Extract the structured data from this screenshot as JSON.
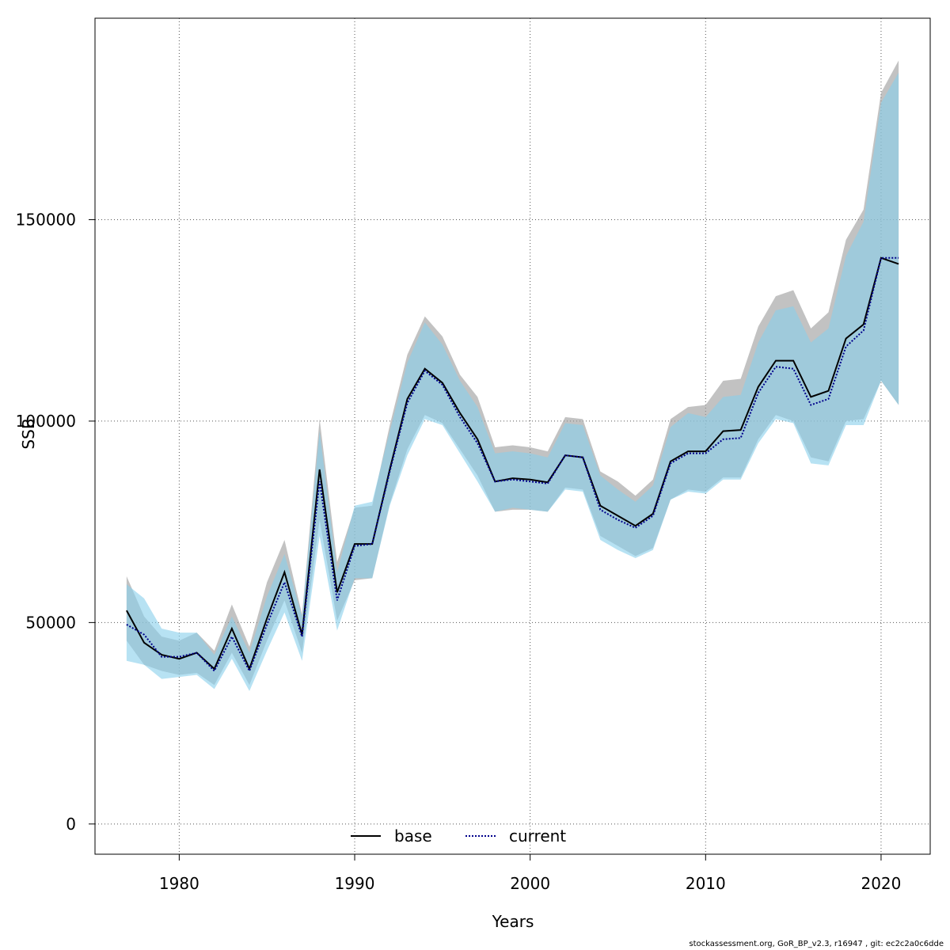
{
  "chart_data": {
    "type": "line",
    "title": "",
    "xlabel": "Years",
    "ylabel": "SSB",
    "xlim": [
      1975.2,
      2022.8
    ],
    "ylim": [
      -7500,
      200000
    ],
    "x_ticks": [
      1980,
      1990,
      2000,
      2010,
      2020
    ],
    "y_ticks": [
      0,
      50000,
      100000,
      150000
    ],
    "grid": true,
    "legend_position": "bottom-center",
    "legend": [
      "base",
      "current"
    ],
    "x": [
      1977,
      1978,
      1979,
      1980,
      1981,
      1982,
      1983,
      1984,
      1985,
      1986,
      1987,
      1988,
      1989,
      1990,
      1991,
      1992,
      1993,
      1994,
      1995,
      1996,
      1997,
      1998,
      1999,
      2000,
      2001,
      2002,
      2003,
      2004,
      2005,
      2006,
      2007,
      2008,
      2009,
      2010,
      2011,
      2012,
      2013,
      2014,
      2015,
      2016,
      2017,
      2018,
      2019,
      2020,
      2021
    ],
    "series": [
      {
        "name": "base",
        "style": "solid",
        "line_color": "#000000",
        "band_color": "#999999",
        "values": [
          53000,
          45000,
          42000,
          41000,
          42500,
          38500,
          48500,
          38500,
          51000,
          62500,
          47000,
          88000,
          57500,
          69500,
          69500,
          88000,
          105500,
          113000,
          109500,
          102000,
          95500,
          85000,
          85800,
          85500,
          84800,
          91500,
          91000,
          79000,
          76500,
          74000,
          77000,
          90000,
          92500,
          92500,
          97500,
          97800,
          108500,
          115000,
          115000,
          106000,
          107500,
          120500,
          124000,
          140500,
          139000
        ],
        "lower": [
          45500,
          39500,
          38000,
          37000,
          37500,
          34500,
          42500,
          34500,
          45500,
          55500,
          42500,
          75500,
          50500,
          60500,
          61000,
          79500,
          93000,
          101500,
          99500,
          93000,
          86500,
          77500,
          78000,
          78000,
          77500,
          83500,
          83000,
          71500,
          69000,
          66500,
          68500,
          80500,
          83000,
          82500,
          86000,
          86000,
          95500,
          101500,
          100000,
          91000,
          90000,
          100000,
          100500,
          110000,
          104000
        ],
        "upper": [
          61500,
          51500,
          46500,
          45500,
          47500,
          43000,
          54500,
          44000,
          60000,
          70500,
          52000,
          100500,
          65000,
          78500,
          79000,
          99000,
          116500,
          126000,
          121000,
          111500,
          106000,
          93500,
          94000,
          93500,
          92500,
          101000,
          100500,
          87500,
          85000,
          81500,
          85500,
          100500,
          103500,
          104000,
          110000,
          110500,
          123500,
          131000,
          132500,
          123000,
          127000,
          145000,
          152500,
          181500,
          189500
        ]
      },
      {
        "name": "current",
        "style": "dotted",
        "line_color": "#00008b",
        "band_color": "#87ceeb",
        "values": [
          49500,
          47000,
          41500,
          41500,
          42500,
          38000,
          46500,
          38000,
          49500,
          60000,
          46500,
          85000,
          55500,
          69000,
          69500,
          87500,
          104500,
          112500,
          109000,
          101000,
          94500,
          85000,
          85500,
          85000,
          84500,
          91500,
          91000,
          78000,
          75500,
          73500,
          76500,
          89500,
          92000,
          92000,
          95500,
          95800,
          107000,
          113500,
          113000,
          104000,
          105500,
          118500,
          122500,
          140500,
          140500
        ],
        "lower": [
          40500,
          39500,
          36000,
          36500,
          37000,
          33500,
          41000,
          33000,
          43000,
          52500,
          40500,
          71500,
          48000,
          61000,
          61000,
          79000,
          91500,
          100500,
          99000,
          92000,
          85000,
          77500,
          78500,
          78000,
          77500,
          83000,
          82500,
          70500,
          68000,
          66000,
          68000,
          80500,
          82500,
          82000,
          85500,
          85500,
          94500,
          100500,
          99500,
          89500,
          89000,
          99000,
          99000,
          110000,
          104000
        ],
        "upper": [
          59500,
          56000,
          48500,
          47500,
          47500,
          42000,
          51500,
          42500,
          56500,
          67000,
          51500,
          97500,
          62500,
          79000,
          80000,
          97500,
          114500,
          124500,
          119000,
          110000,
          103500,
          92000,
          92500,
          92000,
          91000,
          99500,
          99000,
          86500,
          83000,
          80000,
          84000,
          98500,
          102000,
          101000,
          106000,
          106500,
          119500,
          127500,
          128500,
          119500,
          123000,
          141000,
          149500,
          179000,
          186500
        ]
      }
    ]
  },
  "footer_text": "stockassessment.org, GoR_BP_v2.3, r16947 , git: ec2c2a0c6dde"
}
